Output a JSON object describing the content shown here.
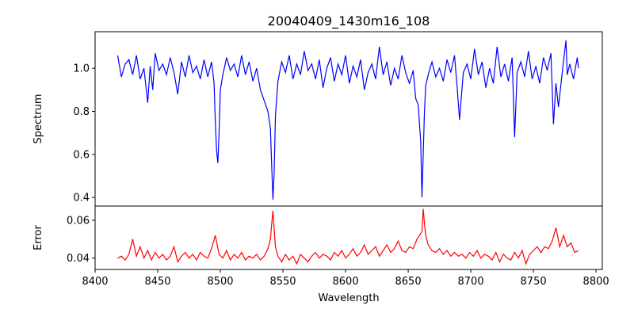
{
  "chart_data": {
    "type": "line",
    "title": "20040409_1430m16_108",
    "xlabel": "Wavelength",
    "xlim": [
      8400,
      8805
    ],
    "x_ticks": [
      8400,
      8450,
      8500,
      8550,
      8600,
      8650,
      8700,
      8750,
      8800
    ],
    "grid": false,
    "legend": "none",
    "panels": [
      {
        "name": "spectrum",
        "ylabel": "Spectrum",
        "ylim": [
          0.36,
          1.17
        ],
        "y_ticks": [
          0.4,
          0.6,
          0.8,
          1.0
        ],
        "y_tick_labels": [
          "0.4",
          "0.6",
          "0.8",
          "1.0"
        ],
        "color": "#0000ff",
        "series": [
          {
            "x": [
              8418,
              8421,
              8424,
              8427,
              8430,
              8433,
              8436,
              8439,
              8442,
              8444,
              8446,
              8448,
              8451,
              8454,
              8457,
              8460,
              8463,
              8466,
              8469,
              8472,
              8475,
              8478,
              8481,
              8484,
              8487,
              8490,
              8493,
              8495,
              8496,
              8497,
              8498,
              8499,
              8500,
              8502,
              8505,
              8508,
              8511,
              8514,
              8517,
              8520,
              8523,
              8526,
              8529,
              8532,
              8535,
              8538,
              8540,
              8541,
              8542,
              8543,
              8544,
              8546,
              8549,
              8552,
              8555,
              8558,
              8561,
              8564,
              8567,
              8570,
              8573,
              8576,
              8579,
              8582,
              8585,
              8588,
              8591,
              8594,
              8597,
              8600,
              8603,
              8606,
              8609,
              8612,
              8615,
              8618,
              8621,
              8624,
              8627,
              8630,
              8633,
              8636,
              8639,
              8642,
              8645,
              8648,
              8651,
              8654,
              8656,
              8658,
              8660,
              8661,
              8662,
              8663,
              8664,
              8666,
              8669,
              8672,
              8675,
              8678,
              8681,
              8684,
              8687,
              8689,
              8691,
              8694,
              8697,
              8700,
              8703,
              8706,
              8709,
              8712,
              8715,
              8718,
              8721,
              8724,
              8727,
              8730,
              8733,
              8735,
              8737,
              8740,
              8743,
              8746,
              8749,
              8752,
              8755,
              8758,
              8761,
              8764,
              8766,
              8768,
              8770,
              8773,
              8776,
              8777,
              8779,
              8782,
              8785,
              8786
            ],
            "y": [
              1.06,
              0.96,
              1.02,
              1.04,
              0.97,
              1.06,
              0.95,
              1.0,
              0.84,
              1.01,
              0.9,
              1.07,
              0.99,
              1.02,
              0.97,
              1.05,
              0.98,
              0.88,
              1.03,
              0.96,
              1.06,
              0.98,
              1.01,
              0.95,
              1.04,
              0.96,
              1.03,
              0.93,
              0.75,
              0.62,
              0.56,
              0.7,
              0.9,
              0.97,
              1.05,
              0.99,
              1.02,
              0.96,
              1.06,
              0.97,
              1.03,
              0.94,
              1.0,
              0.9,
              0.85,
              0.8,
              0.72,
              0.55,
              0.39,
              0.52,
              0.78,
              0.94,
              1.03,
              0.98,
              1.06,
              0.95,
              1.02,
              0.97,
              1.08,
              0.99,
              1.02,
              0.95,
              1.04,
              0.91,
              1.0,
              1.05,
              0.94,
              1.02,
              0.97,
              1.06,
              0.93,
              1.01,
              0.96,
              1.04,
              0.9,
              0.98,
              1.02,
              0.95,
              1.1,
              0.97,
              1.03,
              0.92,
              1.0,
              0.95,
              1.06,
              0.98,
              0.93,
              0.99,
              0.86,
              0.83,
              0.66,
              0.4,
              0.6,
              0.8,
              0.92,
              0.97,
              1.03,
              0.96,
              1.0,
              0.94,
              1.04,
              0.98,
              1.06,
              0.92,
              0.76,
              0.98,
              1.02,
              0.95,
              1.09,
              0.97,
              1.03,
              0.91,
              1.0,
              0.93,
              1.1,
              0.96,
              1.02,
              0.94,
              1.05,
              0.68,
              0.98,
              1.03,
              0.96,
              1.08,
              0.95,
              1.01,
              0.93,
              1.05,
              0.99,
              1.07,
              0.74,
              0.93,
              0.82,
              0.98,
              1.13,
              0.97,
              1.02,
              0.95,
              1.05,
              1.0
            ]
          }
        ]
      },
      {
        "name": "error",
        "ylabel": "Error",
        "ylim": [
          0.034,
          0.0675
        ],
        "y_ticks": [
          0.04,
          0.06
        ],
        "y_tick_labels": [
          "0.04",
          "0.06"
        ],
        "color": "#ff0000",
        "series": [
          {
            "x": [
              8418,
              8421,
              8424,
              8427,
              8430,
              8433,
              8436,
              8439,
              8442,
              8445,
              8448,
              8451,
              8454,
              8457,
              8460,
              8463,
              8466,
              8469,
              8472,
              8475,
              8478,
              8481,
              8484,
              8487,
              8490,
              8493,
              8496,
              8499,
              8502,
              8505,
              8508,
              8511,
              8514,
              8517,
              8520,
              8523,
              8526,
              8529,
              8532,
              8535,
              8538,
              8540,
              8541,
              8542,
              8543,
              8544,
              8546,
              8549,
              8552,
              8555,
              8558,
              8561,
              8564,
              8567,
              8570,
              8573,
              8576,
              8579,
              8582,
              8585,
              8588,
              8591,
              8594,
              8597,
              8600,
              8603,
              8606,
              8609,
              8612,
              8615,
              8618,
              8621,
              8624,
              8627,
              8630,
              8633,
              8636,
              8639,
              8642,
              8645,
              8648,
              8651,
              8654,
              8657,
              8659,
              8661,
              8662,
              8663,
              8664,
              8666,
              8669,
              8672,
              8675,
              8678,
              8681,
              8684,
              8687,
              8690,
              8693,
              8696,
              8699,
              8702,
              8705,
              8708,
              8711,
              8714,
              8717,
              8720,
              8723,
              8726,
              8729,
              8732,
              8735,
              8738,
              8741,
              8744,
              8747,
              8750,
              8753,
              8756,
              8759,
              8762,
              8765,
              8768,
              8771,
              8774,
              8777,
              8780,
              8783,
              8786
            ],
            "y": [
              0.04,
              0.041,
              0.039,
              0.042,
              0.05,
              0.041,
              0.046,
              0.04,
              0.044,
              0.039,
              0.043,
              0.04,
              0.042,
              0.039,
              0.041,
              0.046,
              0.038,
              0.041,
              0.043,
              0.04,
              0.042,
              0.039,
              0.043,
              0.041,
              0.04,
              0.045,
              0.052,
              0.042,
              0.04,
              0.044,
              0.039,
              0.042,
              0.04,
              0.043,
              0.039,
              0.041,
              0.04,
              0.042,
              0.039,
              0.041,
              0.045,
              0.05,
              0.058,
              0.065,
              0.055,
              0.046,
              0.041,
              0.038,
              0.042,
              0.039,
              0.041,
              0.037,
              0.042,
              0.04,
              0.038,
              0.041,
              0.043,
              0.04,
              0.042,
              0.041,
              0.039,
              0.043,
              0.041,
              0.044,
              0.04,
              0.042,
              0.045,
              0.041,
              0.043,
              0.047,
              0.042,
              0.044,
              0.046,
              0.041,
              0.044,
              0.047,
              0.043,
              0.045,
              0.049,
              0.044,
              0.043,
              0.046,
              0.045,
              0.05,
              0.052,
              0.054,
              0.066,
              0.058,
              0.052,
              0.047,
              0.044,
              0.043,
              0.045,
              0.042,
              0.044,
              0.041,
              0.043,
              0.041,
              0.042,
              0.04,
              0.043,
              0.041,
              0.044,
              0.04,
              0.042,
              0.041,
              0.039,
              0.043,
              0.038,
              0.042,
              0.04,
              0.039,
              0.043,
              0.04,
              0.044,
              0.037,
              0.042,
              0.044,
              0.046,
              0.043,
              0.046,
              0.045,
              0.049,
              0.056,
              0.046,
              0.052,
              0.046,
              0.048,
              0.043,
              0.044
            ]
          }
        ]
      }
    ]
  }
}
